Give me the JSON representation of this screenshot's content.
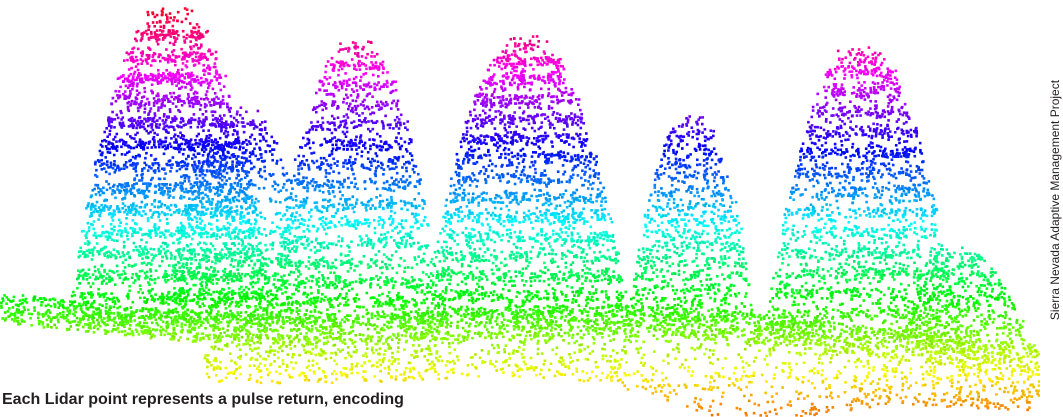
{
  "caption": "Each Lidar point represents a pulse return, encoding",
  "credit": "Sierra Nevada Adaptive Management Project"
}
